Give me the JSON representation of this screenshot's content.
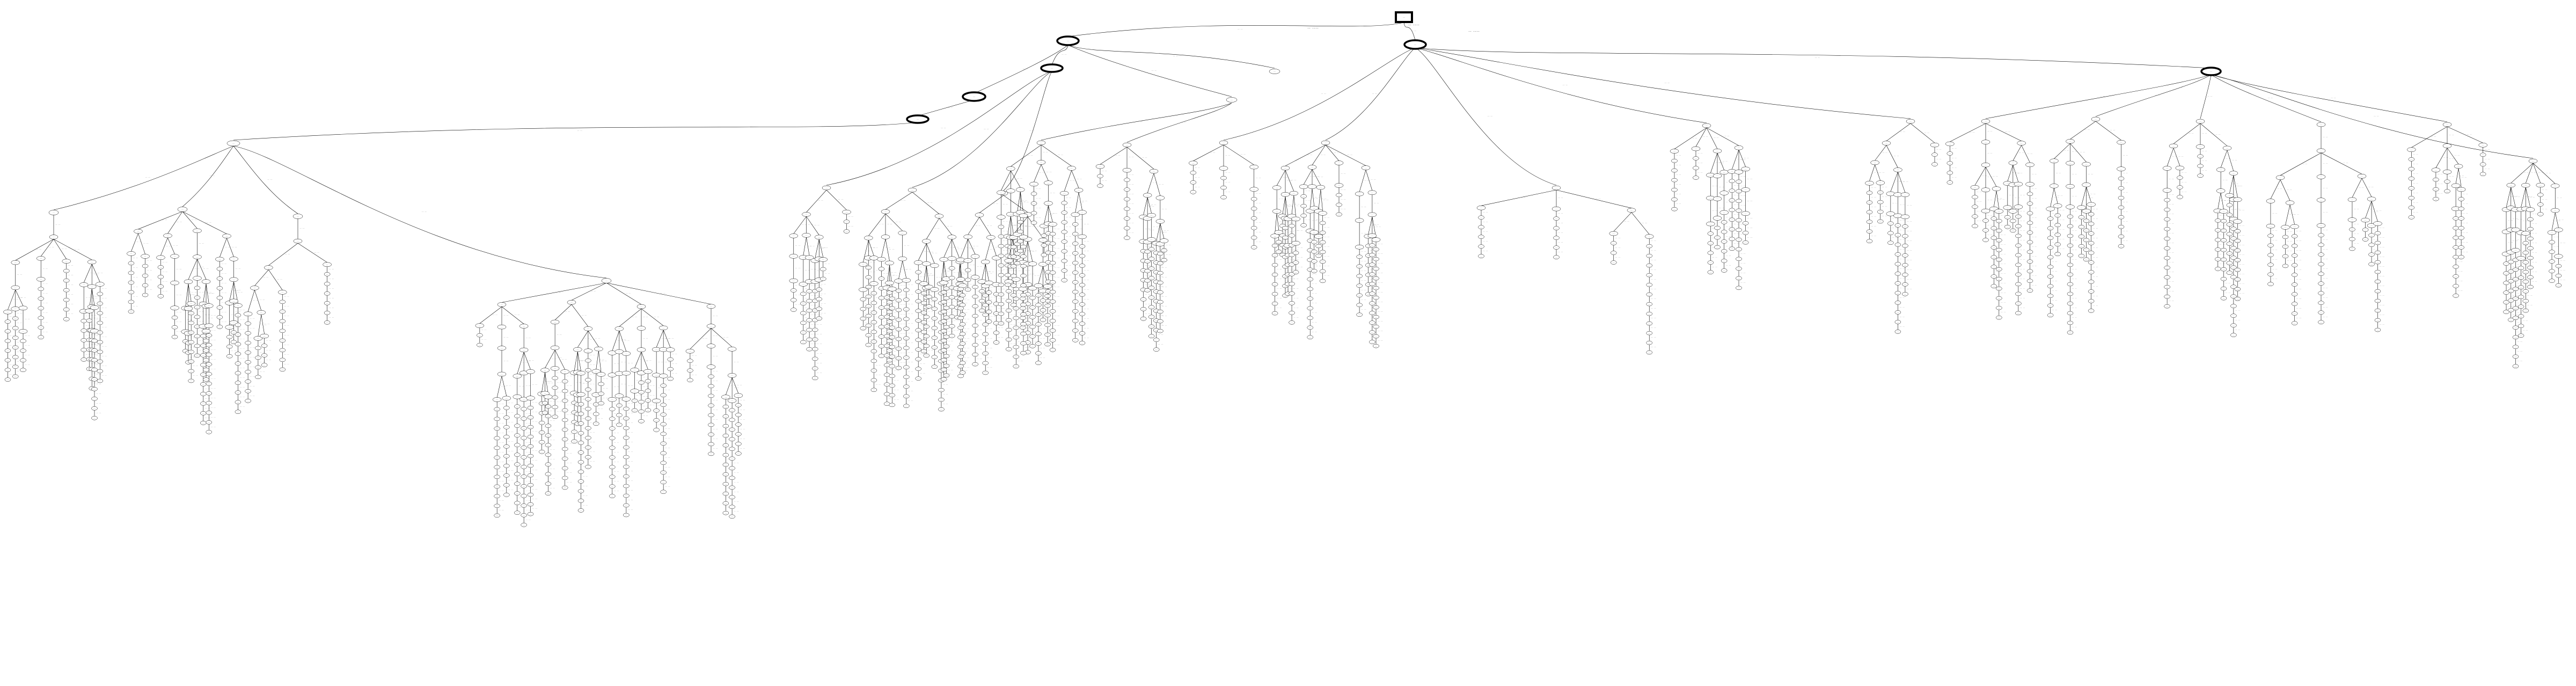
{
  "diagram": {
    "kind": "search-tree",
    "line_color": "#000000",
    "background": "#ffffff",
    "root": {
      "node_label": "-",
      "shape": "box",
      "highlight": true,
      "children": [
        {
          "edge_label": "--",
          "node_label": "----",
          "shape": "ellipse",
          "highlight": true,
          "children_count": 6
        },
        {
          "edge_label": "--",
          "node_label": "--",
          "shape": "ellipse",
          "highlight": true,
          "children_count": 1
        }
      ]
    },
    "note": ""
  }
}
